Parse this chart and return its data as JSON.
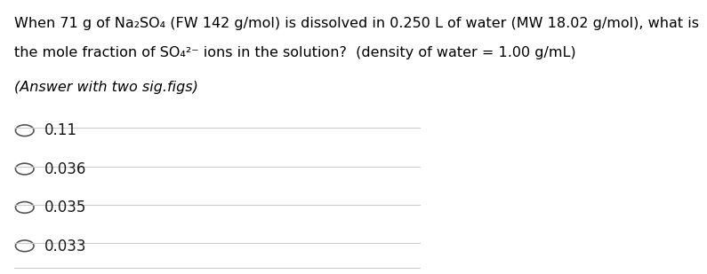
{
  "title_line1": "When 71 g of Na₂SO₄ (FW 142 g/mol) is dissolved in 0.250 L of water (MW 18.02 g/mol), what is",
  "title_line2": "the mole fraction of SO₄²⁻ ions in the solution?  (density of water = 1.00 g/mL)",
  "subtitle": "(Answer with two sig.figs)",
  "options": [
    "0.11",
    "0.036",
    "0.035",
    "0.033"
  ],
  "background_color": "#ffffff",
  "text_color": "#000000",
  "option_text_color": "#1a1a1a",
  "line_color": "#cccccc",
  "circle_color": "#555555",
  "title_fontsize": 11.5,
  "subtitle_fontsize": 11.5,
  "option_fontsize": 12
}
